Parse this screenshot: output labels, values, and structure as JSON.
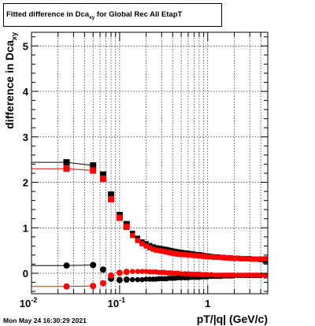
{
  "title": {
    "text_before": "Fitted difference in Dca",
    "subscript": "xy",
    "text_after": " for Global Rec All EtapT"
  },
  "footer_timestamp": "Mon May 24 16:30:29 2021",
  "chart_data": {
    "type": "scatter",
    "title": "Fitted difference in Dca_xy for Global Rec All EtapT",
    "xlabel": "pT/|q| (GeV/c)",
    "ylabel": "difference in Dca_xy",
    "xscale": "log",
    "xlim": [
      0.01,
      4.8
    ],
    "ylim": [
      -0.45,
      5.3
    ],
    "x_ticks": [
      "10^-2",
      "10^-1",
      "1"
    ],
    "y_ticks": [
      "0",
      "1",
      "2",
      "3",
      "4",
      "5"
    ],
    "grid": true,
    "series": [
      {
        "color": "#000000",
        "marker": "square",
        "x": [
          0.025,
          0.05,
          0.065,
          0.08,
          0.1,
          0.12,
          0.14,
          0.16,
          0.18,
          0.2,
          0.22,
          0.24,
          0.26,
          0.28,
          0.3,
          0.32,
          0.34,
          0.36,
          0.38,
          0.4,
          0.43,
          0.46,
          0.5,
          0.55,
          0.6,
          0.65,
          0.7,
          0.75,
          0.8,
          0.85,
          0.9,
          0.95,
          1.0,
          1.1,
          1.2,
          1.3,
          1.4,
          1.5,
          1.6,
          1.7,
          1.8,
          1.9,
          2.0,
          2.2,
          2.4,
          2.6,
          2.8,
          3.0,
          3.25,
          3.5,
          3.75,
          4.0,
          4.5
        ],
        "y": [
          2.44,
          2.37,
          2.17,
          1.73,
          1.28,
          1.08,
          0.88,
          0.77,
          0.69,
          0.65,
          0.61,
          0.58,
          0.56,
          0.55,
          0.54,
          0.53,
          0.52,
          0.51,
          0.5,
          0.49,
          0.48,
          0.47,
          0.46,
          0.45,
          0.44,
          0.43,
          0.42,
          0.41,
          0.41,
          0.4,
          0.39,
          0.38,
          0.38,
          0.37,
          0.36,
          0.36,
          0.35,
          0.35,
          0.34,
          0.34,
          0.34,
          0.33,
          0.33,
          0.33,
          0.32,
          0.32,
          0.32,
          0.32,
          0.31,
          0.31,
          0.31,
          0.3,
          0.27
        ]
      },
      {
        "color": "#ff0000",
        "marker": "square",
        "x": [
          0.025,
          0.05,
          0.065,
          0.08,
          0.1,
          0.12,
          0.14,
          0.16,
          0.18,
          0.2,
          0.22,
          0.24,
          0.26,
          0.28,
          0.3,
          0.32,
          0.34,
          0.36,
          0.38,
          0.4,
          0.43,
          0.46,
          0.5,
          0.55,
          0.6,
          0.65,
          0.7,
          0.75,
          0.8,
          0.85,
          0.9,
          0.95,
          1.0,
          1.1,
          1.2,
          1.3,
          1.4,
          1.5,
          1.6,
          1.7,
          1.8,
          1.9,
          2.0,
          2.2,
          2.4,
          2.6,
          2.8,
          3.0,
          3.25,
          3.5,
          3.75,
          4.0,
          4.5
        ],
        "y": [
          2.3,
          2.26,
          2.08,
          1.63,
          1.22,
          1.02,
          0.83,
          0.72,
          0.65,
          0.6,
          0.56,
          0.53,
          0.51,
          0.5,
          0.49,
          0.48,
          0.47,
          0.46,
          0.45,
          0.44,
          0.43,
          0.42,
          0.41,
          0.41,
          0.4,
          0.4,
          0.39,
          0.39,
          0.38,
          0.38,
          0.37,
          0.37,
          0.36,
          0.36,
          0.35,
          0.35,
          0.35,
          0.34,
          0.34,
          0.34,
          0.33,
          0.33,
          0.33,
          0.33,
          0.32,
          0.32,
          0.32,
          0.32,
          0.31,
          0.31,
          0.31,
          0.31,
          0.32
        ]
      },
      {
        "color": "#000000",
        "marker": "circle",
        "x": [
          0.025,
          0.05,
          0.065,
          0.08,
          0.1,
          0.12,
          0.14,
          0.16,
          0.18,
          0.2,
          0.22,
          0.24,
          0.26,
          0.28,
          0.3,
          0.32,
          0.34,
          0.36,
          0.38,
          0.4,
          0.43,
          0.46,
          0.5,
          0.55,
          0.6,
          0.65,
          0.7,
          0.75,
          0.8,
          0.85,
          0.9,
          0.95,
          1.0,
          1.1,
          1.2,
          1.3,
          1.4,
          1.5,
          1.6,
          1.7,
          1.8,
          1.9,
          2.0,
          2.2,
          2.4,
          2.6,
          2.8,
          3.0,
          3.25,
          3.5,
          3.75,
          4.0,
          4.5
        ],
        "y": [
          0.17,
          0.18,
          0.08,
          -0.12,
          -0.15,
          -0.14,
          -0.14,
          -0.14,
          -0.14,
          -0.13,
          -0.13,
          -0.13,
          -0.13,
          -0.12,
          -0.12,
          -0.12,
          -0.12,
          -0.11,
          -0.11,
          -0.11,
          -0.11,
          -0.1,
          -0.1,
          -0.1,
          -0.1,
          -0.09,
          -0.09,
          -0.09,
          -0.09,
          -0.08,
          -0.08,
          -0.08,
          -0.08,
          -0.07,
          -0.07,
          -0.07,
          -0.07,
          -0.06,
          -0.06,
          -0.06,
          -0.06,
          -0.06,
          -0.05,
          -0.05,
          -0.05,
          -0.05,
          -0.05,
          -0.05,
          -0.05,
          -0.05,
          -0.05,
          -0.05,
          -0.06
        ]
      },
      {
        "color": "#ff0000",
        "marker": "circle",
        "x": [
          0.025,
          0.05,
          0.065,
          0.08,
          0.1,
          0.12,
          0.14,
          0.16,
          0.18,
          0.2,
          0.22,
          0.24,
          0.26,
          0.28,
          0.3,
          0.32,
          0.34,
          0.36,
          0.38,
          0.4,
          0.43,
          0.46,
          0.5,
          0.55,
          0.6,
          0.65,
          0.7,
          0.75,
          0.8,
          0.85,
          0.9,
          0.95,
          1.0,
          1.1,
          1.2,
          1.3,
          1.4,
          1.5,
          1.6,
          1.7,
          1.8,
          1.9,
          2.0,
          2.2,
          2.4,
          2.6,
          2.8,
          3.0,
          3.25,
          3.5,
          3.75,
          4.0,
          4.5
        ],
        "y": [
          -0.29,
          -0.28,
          -0.22,
          -0.05,
          0.01,
          0.03,
          0.04,
          0.04,
          0.04,
          0.04,
          0.03,
          0.03,
          0.03,
          0.02,
          0.02,
          0.02,
          0.01,
          0.01,
          0.01,
          0.0,
          0.0,
          0.0,
          -0.01,
          -0.01,
          -0.01,
          -0.02,
          -0.02,
          -0.02,
          -0.02,
          -0.03,
          -0.03,
          -0.03,
          -0.03,
          -0.03,
          -0.04,
          -0.04,
          -0.04,
          -0.04,
          -0.04,
          -0.04,
          -0.04,
          -0.04,
          -0.04,
          -0.04,
          -0.04,
          -0.04,
          -0.04,
          -0.04,
          -0.04,
          -0.04,
          -0.04,
          -0.04,
          -0.05
        ]
      }
    ]
  }
}
